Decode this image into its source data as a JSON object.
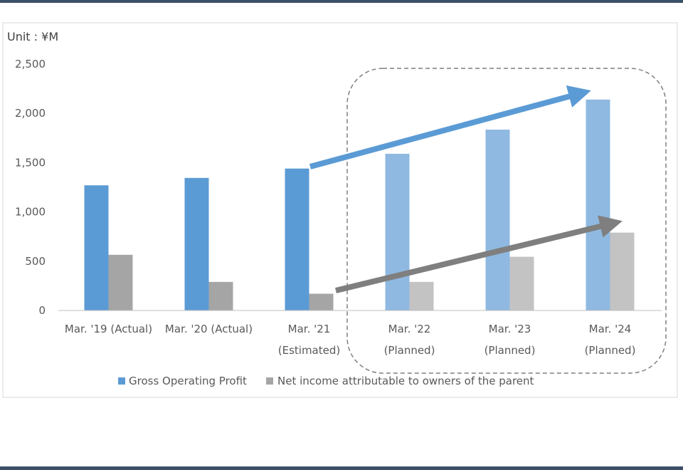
{
  "chart_data": {
    "type": "bar",
    "unit_label": "Unit : ¥M",
    "categories": [
      [
        "Mar. '19 (Actual)"
      ],
      [
        "Mar. '20 (Actual)"
      ],
      [
        "Mar. '21",
        "(Estimated)"
      ],
      [
        "Mar. '22",
        "(Planned)"
      ],
      [
        "Mar. '23",
        "(Planned)"
      ],
      [
        "Mar. '24",
        "(Planned)"
      ]
    ],
    "series": [
      {
        "name": "Gross Operating Profit",
        "values": [
          1270,
          1345,
          1440,
          1590,
          1835,
          2140
        ],
        "color": "#5b9bd5",
        "planned_color": "#8fb9e1"
      },
      {
        "name": "Net income attributable to owners of the parent",
        "values": [
          565,
          290,
          170,
          290,
          545,
          790
        ],
        "color": "#a5a5a5",
        "planned_color": "#c3c3c3"
      }
    ],
    "planned_from_index": 3,
    "ylim": [
      0,
      2500
    ],
    "yticks": [
      0,
      500,
      1000,
      1500,
      2000,
      2500
    ],
    "grid": false,
    "legend": "bottom",
    "annotations": [
      {
        "type": "trend-arrow",
        "series": "Gross Operating Profit",
        "color": "#5b9bd5"
      },
      {
        "type": "trend-arrow",
        "series": "Net income attributable to owners of the parent",
        "color": "#7f7f7f"
      },
      {
        "type": "dashed-highlight-box",
        "target": "planned"
      }
    ]
  }
}
